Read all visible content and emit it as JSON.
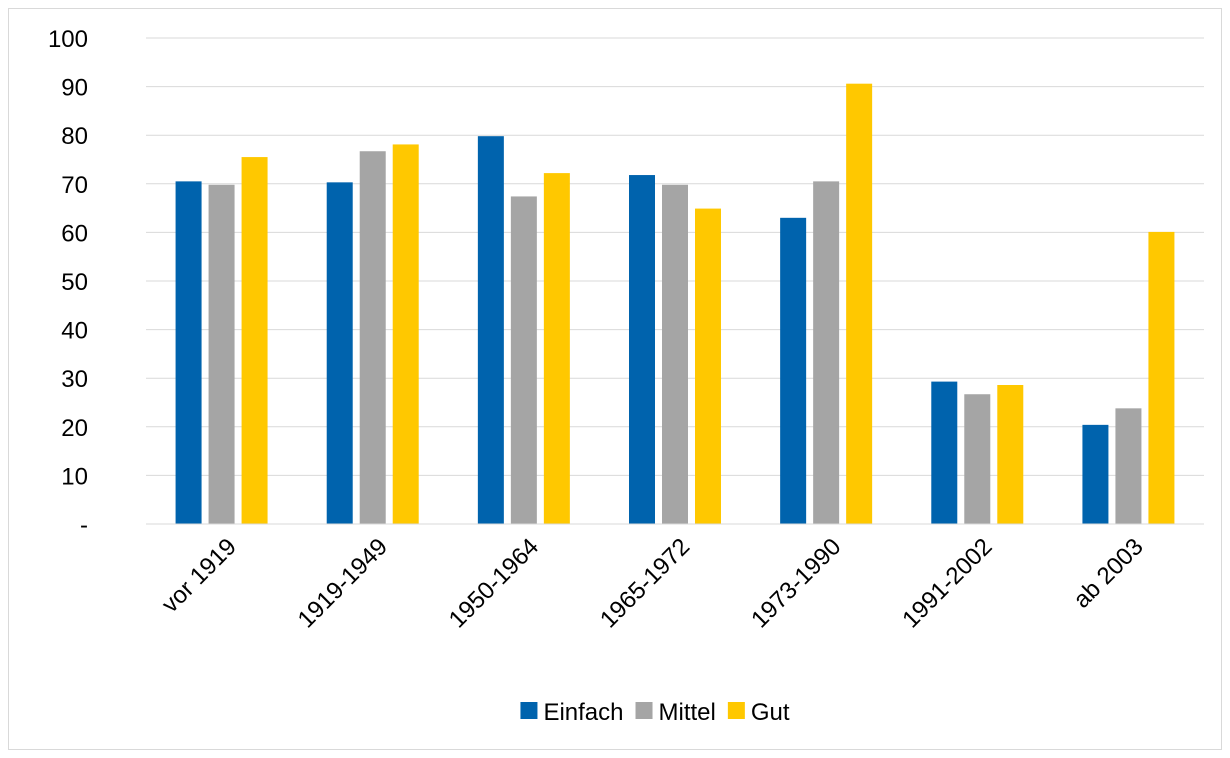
{
  "chart_data": {
    "type": "bar",
    "title": "",
    "xlabel": "",
    "ylabel": "",
    "ylim": [
      0,
      100
    ],
    "yticks": [
      0,
      10,
      20,
      30,
      40,
      50,
      60,
      70,
      80,
      90,
      100
    ],
    "ytick_labels": [
      "-",
      "10",
      "20",
      "30",
      "40",
      "50",
      "60",
      "70",
      "80",
      "90",
      "100"
    ],
    "grid": true,
    "legend_position": "bottom",
    "categories": [
      "vor 1919",
      "1919-1949",
      "1950-1964",
      "1965-1972",
      "1973-1990",
      "1991-2002",
      "ab 2003"
    ],
    "series": [
      {
        "name": "Einfach",
        "color": "#0063ad",
        "values": [
          70.5,
          70.3,
          79.8,
          71.8,
          63.0,
          29.3,
          20.4
        ]
      },
      {
        "name": "Mittel",
        "color": "#a5a5a5",
        "values": [
          69.8,
          76.7,
          67.4,
          69.8,
          70.5,
          26.7,
          23.8
        ]
      },
      {
        "name": "Gut",
        "color": "#ffc800",
        "values": [
          75.5,
          78.1,
          72.2,
          64.9,
          90.6,
          28.6,
          60.1
        ]
      }
    ]
  }
}
